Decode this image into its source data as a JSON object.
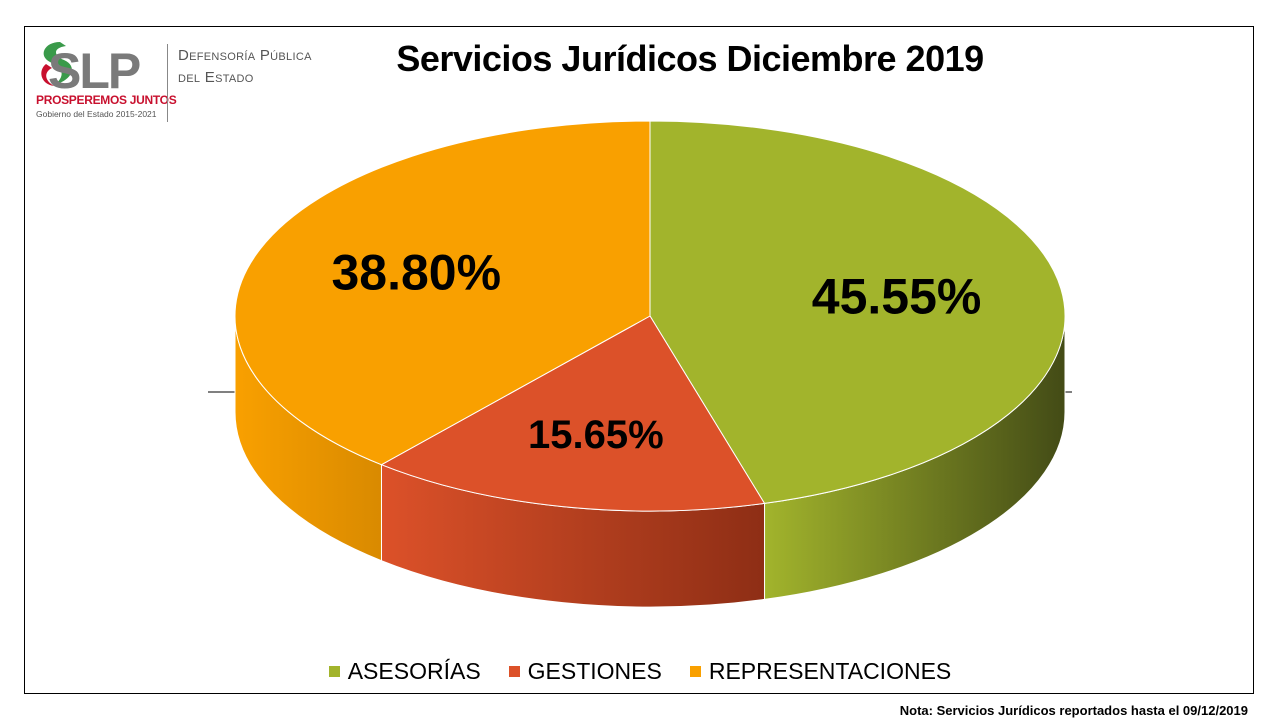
{
  "header": {
    "logo_mark": "SLP",
    "logo_motto": "PROSPEREMOS JUNTOS",
    "logo_gov": "Gobierno del Estado 2015-2021",
    "agency_line1": "Defensoría Pública",
    "agency_line2": "del Estado"
  },
  "chart_data": {
    "type": "pie",
    "title": "Servicios Jurídicos Diciembre 2019",
    "style": "3d",
    "legend_position": "bottom",
    "slices": [
      {
        "label": "ASESORÍAS",
        "value": 45.55,
        "display": "45.55%",
        "color": "#a2b42c",
        "side_color": "#434b16"
      },
      {
        "label": "GESTIONES",
        "value": 15.65,
        "display": "15.65%",
        "color": "#dc5129",
        "side_color": "#8e2e15"
      },
      {
        "label": "REPRESENTACIONES",
        "value": 38.8,
        "display": "38.80%",
        "color": "#f9a000",
        "side_color": "#d98a00"
      }
    ]
  },
  "footer": {
    "note": "Nota: Servicios Jurídicos reportados hasta el 09/12/2019"
  }
}
